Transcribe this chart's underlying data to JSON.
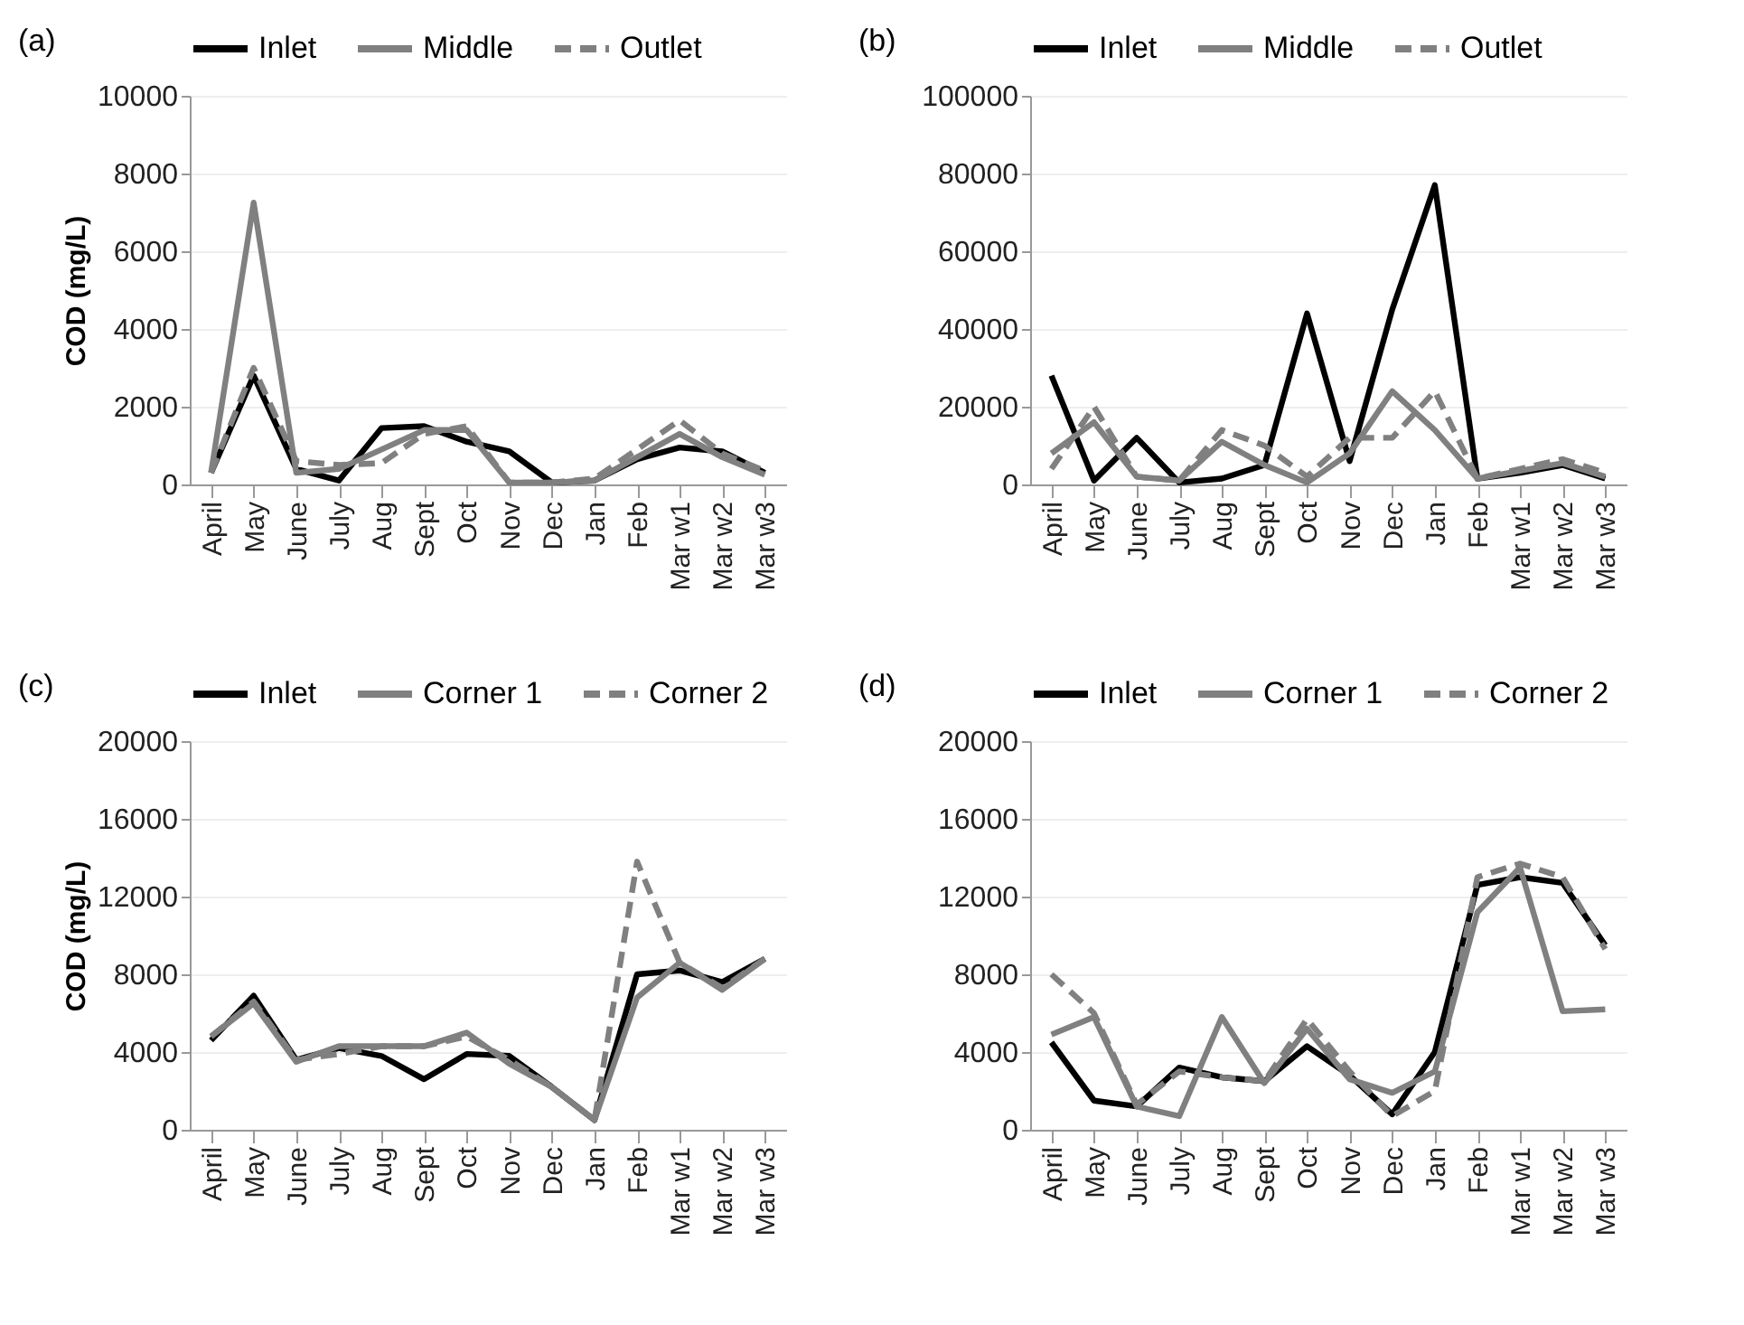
{
  "chart_data": [
    {
      "type": "line",
      "title": "(a)",
      "ylabel": "COD (mg/L)",
      "categories": [
        "April",
        "May",
        "June",
        "July",
        "Aug",
        "Sept",
        "Oct",
        "Nov",
        "Dec",
        "Jan",
        "Feb",
        "Mar w1",
        "Mar w2",
        "Mar w3"
      ],
      "ylim": [
        0,
        10000
      ],
      "yticks": [
        0,
        2000,
        4000,
        6000,
        8000,
        10000
      ],
      "grid": "y",
      "legend": "top",
      "series": [
        {
          "name": "Inlet",
          "color": "#000000",
          "line_style": "solid",
          "values": [
            300,
            2800,
            400,
            100,
            1450,
            1500,
            1100,
            850,
            50,
            100,
            650,
            950,
            850,
            300
          ]
        },
        {
          "name": "Middle",
          "color": "#808080",
          "line_style": "solid",
          "values": [
            300,
            7250,
            300,
            400,
            900,
            1400,
            1400,
            50,
            50,
            100,
            700,
            1300,
            700,
            250
          ]
        },
        {
          "name": "Outlet",
          "color": "#808080",
          "line_style": "dashed",
          "values": [
            300,
            3000,
            600,
            500,
            550,
            1300,
            1500,
            50,
            50,
            150,
            900,
            1650,
            800,
            350
          ]
        }
      ]
    },
    {
      "type": "line",
      "title": "(b)",
      "categories": [
        "April",
        "May",
        "June",
        "July",
        "Aug",
        "Sept",
        "Oct",
        "Nov",
        "Dec",
        "Jan",
        "Feb",
        "Mar w1",
        "Mar w2",
        "Mar w3"
      ],
      "ylim": [
        0,
        100000
      ],
      "yticks": [
        0,
        20000,
        40000,
        60000,
        80000,
        100000
      ],
      "grid": "y",
      "legend": "top",
      "series": [
        {
          "name": "Inlet",
          "color": "#000000",
          "line_style": "solid",
          "values": [
            28000,
            1000,
            12000,
            500,
            1500,
            5000,
            44000,
            6000,
            45000,
            77000,
            1500,
            3000,
            5000,
            1500
          ]
        },
        {
          "name": "Middle",
          "color": "#808080",
          "line_style": "solid",
          "values": [
            8000,
            16000,
            2000,
            1000,
            11000,
            5000,
            500,
            8000,
            24000,
            14000,
            1500,
            3500,
            5500,
            2000
          ]
        },
        {
          "name": "Outlet",
          "color": "#808080",
          "line_style": "dashed",
          "values": [
            4000,
            20000,
            2000,
            1000,
            14000,
            10000,
            2000,
            12000,
            12000,
            24000,
            1500,
            4000,
            6500,
            3000
          ]
        }
      ]
    },
    {
      "type": "line",
      "title": "(c)",
      "ylabel": "COD (mg/L)",
      "categories": [
        "April",
        "May",
        "June",
        "July",
        "Aug",
        "Sept",
        "Oct",
        "Nov",
        "Dec",
        "Jan",
        "Feb",
        "Mar w1",
        "Mar w2",
        "Mar w3"
      ],
      "ylim": [
        0,
        20000
      ],
      "yticks": [
        0,
        4000,
        8000,
        12000,
        16000,
        20000
      ],
      "grid": "y",
      "legend": "top",
      "series": [
        {
          "name": "Inlet",
          "color": "#000000",
          "line_style": "solid",
          "values": [
            4600,
            6900,
            3600,
            4200,
            3800,
            2600,
            3900,
            3800,
            2200,
            500,
            8000,
            8200,
            7600,
            8800
          ]
        },
        {
          "name": "Corner 1",
          "color": "#808080",
          "line_style": "solid",
          "values": [
            4800,
            6500,
            3500,
            4300,
            4300,
            4300,
            5000,
            3400,
            2200,
            500,
            6800,
            8600,
            7200,
            8800
          ]
        },
        {
          "name": "Corner 2",
          "color": "#808080",
          "line_style": "dashed",
          "values": [
            4800,
            6600,
            3600,
            3900,
            4300,
            4300,
            4800,
            3600,
            2200,
            500,
            13800,
            8600,
            7300,
            8800
          ]
        }
      ]
    },
    {
      "type": "line",
      "title": "(d)",
      "categories": [
        "April",
        "May",
        "June",
        "July",
        "Aug",
        "Sept",
        "Oct",
        "Nov",
        "Dec",
        "Jan",
        "Feb",
        "Mar w1",
        "Mar w2",
        "Mar w3"
      ],
      "ylim": [
        0,
        20000
      ],
      "yticks": [
        0,
        4000,
        8000,
        12000,
        16000,
        20000
      ],
      "grid": "y",
      "legend": "top",
      "series": [
        {
          "name": "Inlet",
          "color": "#000000",
          "line_style": "solid",
          "values": [
            4500,
            1500,
            1200,
            3200,
            2700,
            2500,
            4300,
            2800,
            800,
            4000,
            12600,
            13000,
            12700,
            9500
          ]
        },
        {
          "name": "Corner 1",
          "color": "#808080",
          "line_style": "solid",
          "values": [
            4900,
            5800,
            1200,
            700,
            5800,
            2400,
            5200,
            2600,
            1900,
            3000,
            11200,
            13500,
            6100,
            6200
          ]
        },
        {
          "name": "Corner 2",
          "color": "#808080",
          "line_style": "dashed",
          "values": [
            8000,
            6000,
            1300,
            3000,
            2700,
            2500,
            5700,
            3000,
            700,
            2000,
            13000,
            13700,
            13000,
            9300
          ]
        }
      ]
    }
  ]
}
